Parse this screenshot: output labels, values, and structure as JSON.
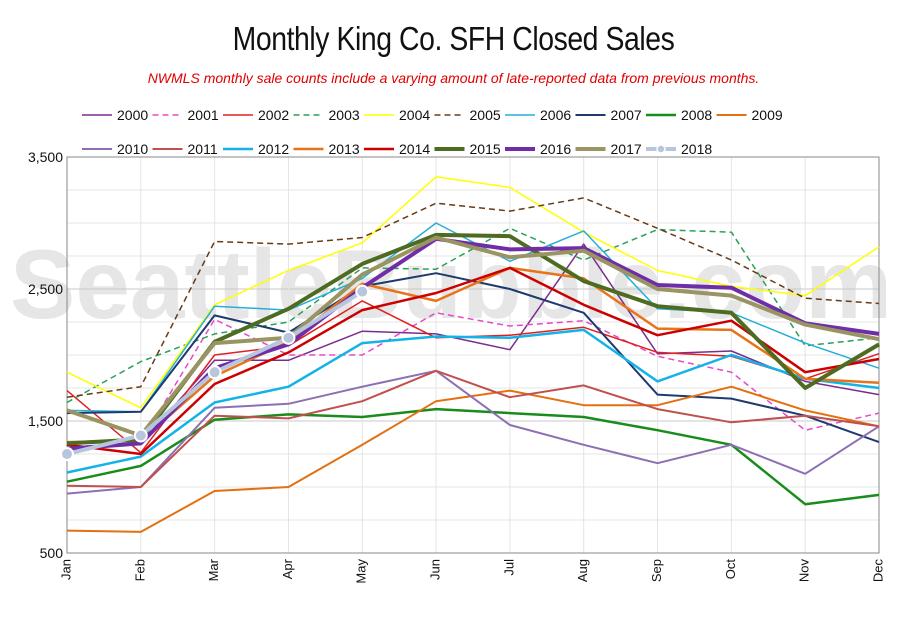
{
  "title": "Monthly King Co. SFH Closed Sales",
  "subtitle": "NWMLS monthly sale counts include a varying amount of late-reported data from previous months.",
  "watermark": "SeattleBubble.com",
  "chart_data": {
    "type": "line",
    "categories": [
      "Jan",
      "Feb",
      "Mar",
      "Apr",
      "May",
      "Jun",
      "Jul",
      "Aug",
      "Sep",
      "Oct",
      "Nov",
      "Dec"
    ],
    "ylim": [
      500,
      3500
    ],
    "yticks": [
      500,
      1500,
      2500,
      3500
    ],
    "ytick_labels": [
      "500",
      "1,500",
      "2,500",
      "3,500"
    ],
    "grid": true,
    "legend_position": "top",
    "series": [
      {
        "name": "2000",
        "color": "#7b2d8e",
        "dash": "solid",
        "width": 1.5,
        "values": [
          1300,
          1330,
          1960,
          1960,
          2180,
          2160,
          2040,
          2840,
          2010,
          2030,
          1800,
          1700
        ]
      },
      {
        "name": "2001",
        "color": "#e64ac8",
        "dash": "dashed",
        "width": 1.5,
        "values": [
          1300,
          1340,
          2270,
          2000,
          2000,
          2320,
          2220,
          2260,
          1990,
          1870,
          1430,
          1560
        ]
      },
      {
        "name": "2002",
        "color": "#e02020",
        "dash": "solid",
        "width": 1.5,
        "values": [
          1730,
          1260,
          2000,
          2070,
          2410,
          2130,
          2150,
          2210,
          2020,
          1990,
          1820,
          2010
        ]
      },
      {
        "name": "2003",
        "color": "#2aa05a",
        "dash": "dashed",
        "width": 1.5,
        "values": [
          1640,
          1950,
          2160,
          2250,
          2660,
          2650,
          2960,
          2720,
          2950,
          2930,
          2070,
          2130
        ]
      },
      {
        "name": "2004",
        "color": "#ffff00",
        "dash": "solid",
        "width": 1.5,
        "values": [
          1870,
          1600,
          2380,
          2640,
          2850,
          3350,
          3270,
          2930,
          2640,
          2520,
          2450,
          2820
        ]
      },
      {
        "name": "2005",
        "color": "#6b3a12",
        "dash": "dashed",
        "width": 1.5,
        "values": [
          1680,
          1760,
          2860,
          2840,
          2890,
          3150,
          3090,
          3190,
          2960,
          2720,
          2430,
          2390
        ]
      },
      {
        "name": "2006",
        "color": "#27aeda",
        "dash": "solid",
        "width": 1.5,
        "values": [
          1580,
          1570,
          2370,
          2340,
          2580,
          3000,
          2710,
          2940,
          2350,
          2320,
          2090,
          1900
        ]
      },
      {
        "name": "2007",
        "color": "#1f3a6e",
        "dash": "solid",
        "width": 2,
        "values": [
          1560,
          1570,
          2300,
          2170,
          2520,
          2620,
          2500,
          2320,
          1700,
          1670,
          1540,
          1340
        ]
      },
      {
        "name": "2008",
        "color": "#1a8c1a",
        "dash": "solid",
        "width": 2.5,
        "values": [
          1040,
          1160,
          1510,
          1550,
          1530,
          1590,
          1560,
          1530,
          1430,
          1320,
          870,
          940
        ]
      },
      {
        "name": "2009",
        "color": "#e37011",
        "dash": "solid",
        "width": 2,
        "values": [
          670,
          660,
          970,
          1000,
          1320,
          1650,
          1730,
          1620,
          1620,
          1760,
          1580,
          1460
        ]
      },
      {
        "name": "2010",
        "color": "#8e6fb4",
        "dash": "solid",
        "width": 2,
        "values": [
          950,
          1000,
          1600,
          1630,
          1760,
          1880,
          1470,
          1320,
          1180,
          1320,
          1100,
          1460
        ]
      },
      {
        "name": "2011",
        "color": "#c0504d",
        "dash": "solid",
        "width": 2,
        "values": [
          1010,
          1000,
          1540,
          1520,
          1650,
          1880,
          1680,
          1770,
          1590,
          1490,
          1540,
          1460
        ]
      },
      {
        "name": "2012",
        "color": "#13b3e8",
        "dash": "solid",
        "width": 2.5,
        "values": [
          1110,
          1230,
          1640,
          1760,
          2090,
          2140,
          2130,
          2190,
          1800,
          2000,
          1820,
          1750
        ]
      },
      {
        "name": "2013",
        "color": "#e8741a",
        "dash": "solid",
        "width": 2.5,
        "values": [
          1340,
          1350,
          1840,
          2100,
          2540,
          2410,
          2660,
          2580,
          2200,
          2190,
          1820,
          1790
        ]
      },
      {
        "name": "2014",
        "color": "#cc0000",
        "dash": "solid",
        "width": 2.5,
        "values": [
          1320,
          1250,
          1780,
          2020,
          2340,
          2470,
          2660,
          2380,
          2150,
          2260,
          1870,
          1970
        ]
      },
      {
        "name": "2015",
        "color": "#4e6b22",
        "dash": "solid",
        "width": 4,
        "values": [
          1330,
          1360,
          2100,
          2350,
          2690,
          2910,
          2900,
          2560,
          2370,
          2320,
          1750,
          2080
        ]
      },
      {
        "name": "2016",
        "color": "#6f2ea8",
        "dash": "solid",
        "width": 4,
        "values": [
          1290,
          1330,
          1900,
          2080,
          2510,
          2880,
          2800,
          2810,
          2530,
          2510,
          2240,
          2160
        ]
      },
      {
        "name": "2017",
        "color": "#999462",
        "dash": "solid",
        "width": 4,
        "values": [
          1580,
          1390,
          2090,
          2130,
          2610,
          2890,
          2740,
          2790,
          2500,
          2450,
          2230,
          2120
        ]
      },
      {
        "name": "2018",
        "color": "#b8c6dd",
        "dash": "solid",
        "width": 4,
        "marker": true,
        "values": [
          1250,
          1390,
          1870,
          2130,
          2480,
          null,
          null,
          null,
          null,
          null,
          null,
          null
        ]
      }
    ]
  }
}
